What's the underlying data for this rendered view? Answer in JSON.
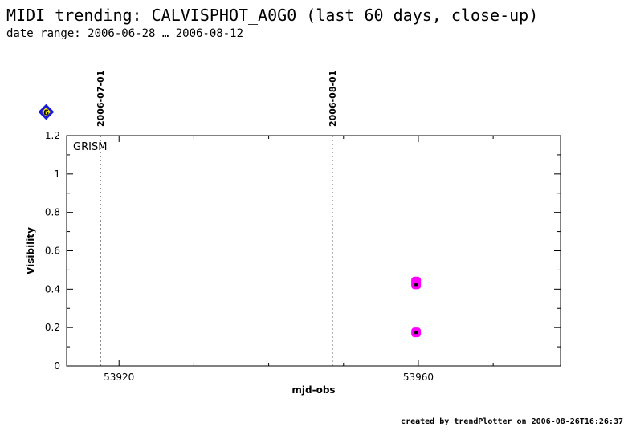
{
  "header": {
    "title": "MIDI trending: CALVISPHOT_A0G0 (last 60 days, close-up)",
    "subtitle": "date range: 2006-06-28 … 2006-08-12"
  },
  "footer": {
    "text": "created by trendPlotter on 2006-08-26T16:26:37"
  },
  "badge": {
    "label": "6",
    "color": "#1a1adb",
    "fill": "#f5e600"
  },
  "chart_data": {
    "type": "scatter",
    "xlabel": "mjd-obs",
    "ylabel": "Visibility",
    "xlim": [
      53913,
      53979
    ],
    "ylim": [
      0,
      1.2
    ],
    "xticks": [
      53920,
      53960
    ],
    "yticks": [
      0,
      0.2,
      0.4,
      0.6,
      0.8,
      1,
      1.2
    ],
    "ytick_labels": [
      "0",
      "0.2",
      "0.4",
      "0.6",
      "0.8",
      "1",
      "1.2"
    ],
    "panel_label": "GRISM",
    "date_markers": [
      {
        "x": 53917.5,
        "label": "2006-07-01"
      },
      {
        "x": 53948.5,
        "label": "2006-08-01"
      }
    ],
    "series": [
      {
        "marker_color": "#ff00ff",
        "center_color": "#000000",
        "points": [
          {
            "x": 53959.7,
            "y": 0.44
          },
          {
            "x": 53959.7,
            "y": 0.425
          },
          {
            "x": 53959.7,
            "y": 0.175
          }
        ]
      }
    ]
  }
}
